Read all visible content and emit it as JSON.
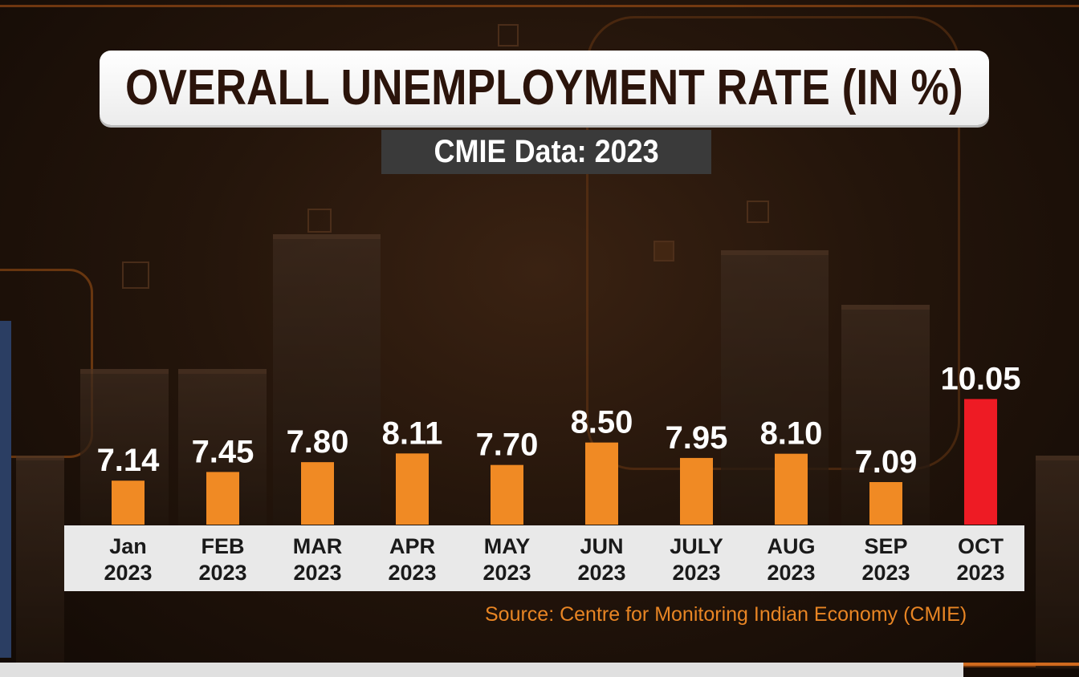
{
  "header": {
    "title": "OVERALL UNEMPLOYMENT RATE (IN %)",
    "subtitle": "CMIE Data: 2023"
  },
  "footer": {
    "source": "Source: Centre for Monitoring Indian Economy (CMIE)"
  },
  "colors": {
    "bar": "#f08a24",
    "highlight_bar": "#ee1b24",
    "value_label": "#ffffff",
    "axis_label": "#1a1a1a"
  },
  "chart_data": {
    "type": "bar",
    "title": "OVERALL UNEMPLOYMENT RATE (IN %)",
    "subtitle": "CMIE Data: 2023",
    "categories": [
      "Jan\n2023",
      "FEB\n2023",
      "MAR\n2023",
      "APR\n2023",
      "MAY\n2023",
      "JUN\n2023",
      "JULY\n2023",
      "AUG\n2023",
      "SEP\n2023",
      "OCT\n2023"
    ],
    "values": [
      7.14,
      7.45,
      7.8,
      8.11,
      7.7,
      8.5,
      7.95,
      8.1,
      7.09,
      10.05
    ],
    "value_labels": [
      "7.14",
      "7.45",
      "7.80",
      "8.11",
      "7.70",
      "8.50",
      "7.95",
      "8.10",
      "7.09",
      "10.05"
    ],
    "highlight_index": 9,
    "xlabel": "",
    "ylabel": "",
    "grid": false,
    "source": "Source: Centre for Monitoring Indian Economy (CMIE)"
  }
}
